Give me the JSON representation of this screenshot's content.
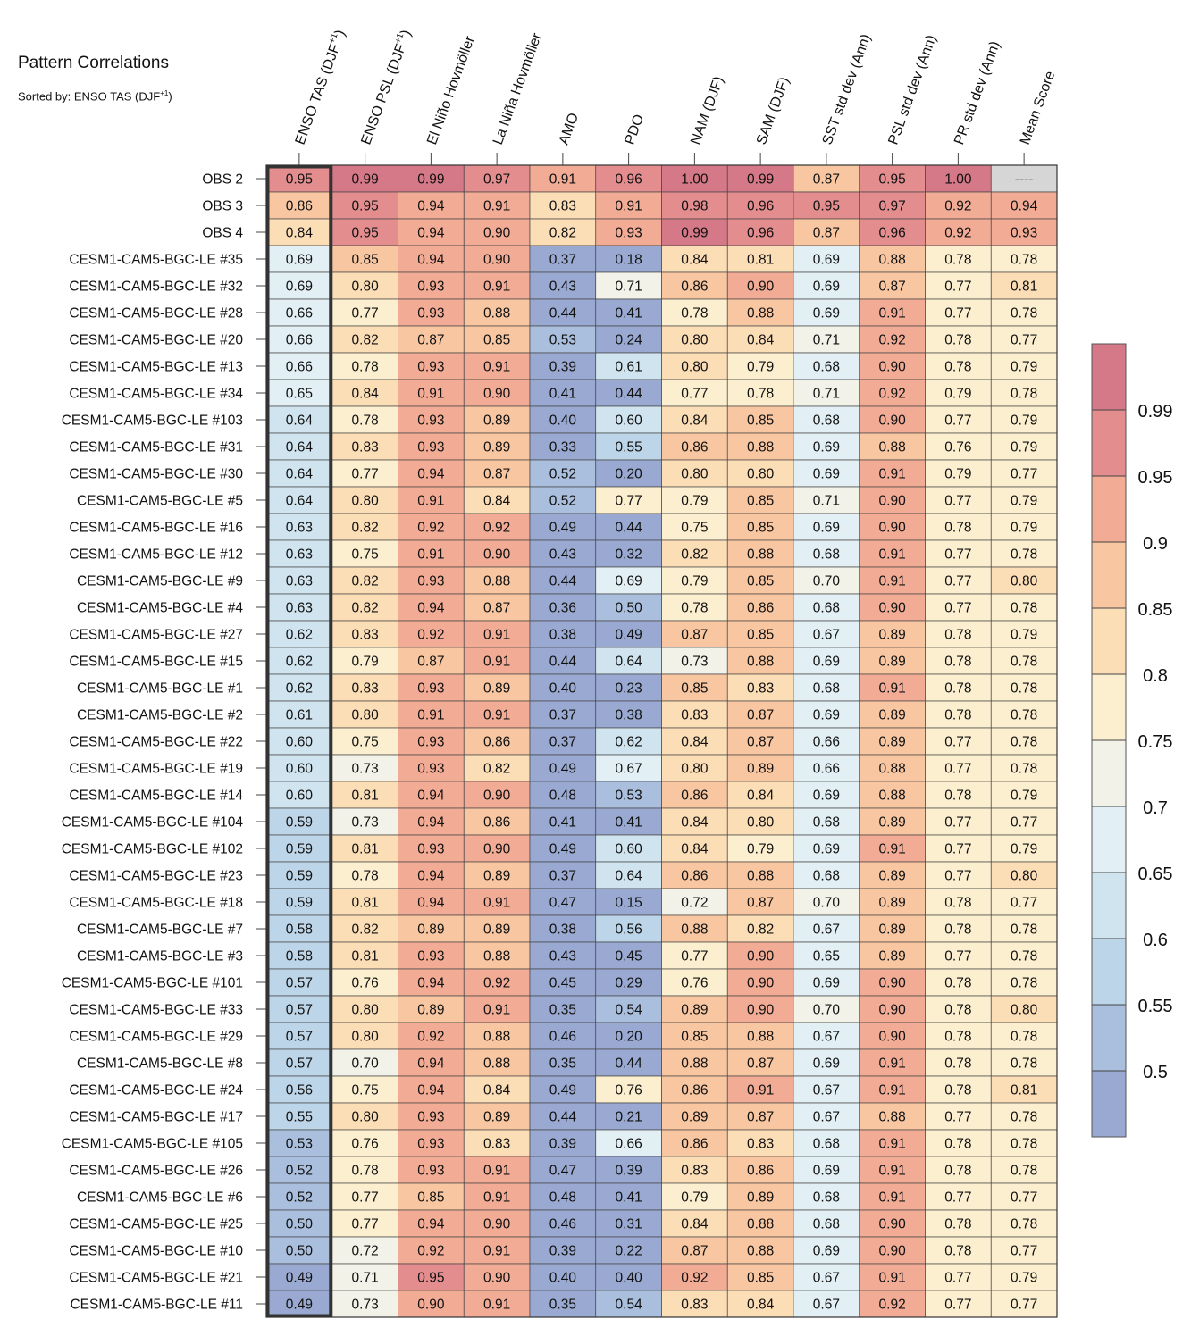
{
  "chart_data": {
    "type": "heatmap",
    "title": "Pattern Correlations",
    "subtitle": "Sorted by: ENSO TAS (DJF+1)",
    "subtitle_prefix": "Sorted by: ENSO TAS (DJF",
    "subtitle_sup": "+1",
    "subtitle_suffix": ")",
    "columns": [
      {
        "label": "ENSO TAS (DJF+1)",
        "main": "ENSO TAS (DJF",
        "sup": "+1",
        "tail": ")"
      },
      {
        "label": "ENSO PSL (DJF+1)",
        "main": "ENSO PSL (DJF",
        "sup": "+1",
        "tail": ")"
      },
      {
        "label": "El Niño Hovmöller",
        "main": "El Niño Hovmöller",
        "sup": "",
        "tail": ""
      },
      {
        "label": "La Niña Hovmöller",
        "main": "La Niña Hovmöller",
        "sup": "",
        "tail": ""
      },
      {
        "label": "AMO",
        "main": "AMO",
        "sup": "",
        "tail": ""
      },
      {
        "label": "PDO",
        "main": "PDO",
        "sup": "",
        "tail": ""
      },
      {
        "label": "NAM (DJF)",
        "main": "NAM (DJF)",
        "sup": "",
        "tail": ""
      },
      {
        "label": "SAM (DJF)",
        "main": "SAM (DJF)",
        "sup": "",
        "tail": ""
      },
      {
        "label": "SST std dev (Ann)",
        "main": "SST std dev (Ann)",
        "sup": "",
        "tail": ""
      },
      {
        "label": "PSL std dev (Ann)",
        "main": "PSL std dev (Ann)",
        "sup": "",
        "tail": ""
      },
      {
        "label": "PR std dev (Ann)",
        "main": "PR std dev (Ann)",
        "sup": "",
        "tail": ""
      },
      {
        "label": "Mean Score",
        "main": "Mean Score",
        "sup": "",
        "tail": ""
      }
    ],
    "missing_text": "----",
    "rows": [
      {
        "name": "OBS 2",
        "values": [
          "0.95",
          "0.99",
          "0.99",
          "0.97",
          "0.91",
          "0.96",
          "1.00",
          "0.99",
          "0.87",
          "0.95",
          "1.00",
          "----"
        ]
      },
      {
        "name": "OBS 3",
        "values": [
          "0.86",
          "0.95",
          "0.94",
          "0.91",
          "0.83",
          "0.91",
          "0.98",
          "0.96",
          "0.95",
          "0.97",
          "0.92",
          "0.94"
        ]
      },
      {
        "name": "OBS 4",
        "values": [
          "0.84",
          "0.95",
          "0.94",
          "0.90",
          "0.82",
          "0.93",
          "0.99",
          "0.96",
          "0.87",
          "0.96",
          "0.92",
          "0.93"
        ]
      },
      {
        "name": "CESM1-CAM5-BGC-LE #35",
        "values": [
          "0.69",
          "0.85",
          "0.94",
          "0.90",
          "0.37",
          "0.18",
          "0.84",
          "0.81",
          "0.69",
          "0.88",
          "0.78",
          "0.78"
        ]
      },
      {
        "name": "CESM1-CAM5-BGC-LE #32",
        "values": [
          "0.69",
          "0.80",
          "0.93",
          "0.91",
          "0.43",
          "0.71",
          "0.86",
          "0.90",
          "0.69",
          "0.87",
          "0.77",
          "0.81"
        ]
      },
      {
        "name": "CESM1-CAM5-BGC-LE #28",
        "values": [
          "0.66",
          "0.77",
          "0.93",
          "0.88",
          "0.44",
          "0.41",
          "0.78",
          "0.88",
          "0.69",
          "0.91",
          "0.77",
          "0.78"
        ]
      },
      {
        "name": "CESM1-CAM5-BGC-LE #20",
        "values": [
          "0.66",
          "0.82",
          "0.87",
          "0.85",
          "0.53",
          "0.24",
          "0.80",
          "0.84",
          "0.71",
          "0.92",
          "0.78",
          "0.77"
        ]
      },
      {
        "name": "CESM1-CAM5-BGC-LE #13",
        "values": [
          "0.66",
          "0.78",
          "0.93",
          "0.91",
          "0.39",
          "0.61",
          "0.80",
          "0.79",
          "0.68",
          "0.90",
          "0.78",
          "0.79"
        ]
      },
      {
        "name": "CESM1-CAM5-BGC-LE #34",
        "values": [
          "0.65",
          "0.84",
          "0.91",
          "0.90",
          "0.41",
          "0.44",
          "0.77",
          "0.78",
          "0.71",
          "0.92",
          "0.79",
          "0.78"
        ]
      },
      {
        "name": "CESM1-CAM5-BGC-LE #103",
        "values": [
          "0.64",
          "0.78",
          "0.93",
          "0.89",
          "0.40",
          "0.60",
          "0.84",
          "0.85",
          "0.68",
          "0.90",
          "0.77",
          "0.79"
        ]
      },
      {
        "name": "CESM1-CAM5-BGC-LE #31",
        "values": [
          "0.64",
          "0.83",
          "0.93",
          "0.89",
          "0.33",
          "0.55",
          "0.86",
          "0.88",
          "0.69",
          "0.88",
          "0.76",
          "0.79"
        ]
      },
      {
        "name": "CESM1-CAM5-BGC-LE #30",
        "values": [
          "0.64",
          "0.77",
          "0.94",
          "0.87",
          "0.52",
          "0.20",
          "0.80",
          "0.80",
          "0.69",
          "0.91",
          "0.79",
          "0.77"
        ]
      },
      {
        "name": "CESM1-CAM5-BGC-LE #5",
        "values": [
          "0.64",
          "0.80",
          "0.91",
          "0.84",
          "0.52",
          "0.77",
          "0.79",
          "0.85",
          "0.71",
          "0.90",
          "0.77",
          "0.79"
        ]
      },
      {
        "name": "CESM1-CAM5-BGC-LE #16",
        "values": [
          "0.63",
          "0.82",
          "0.92",
          "0.92",
          "0.49",
          "0.44",
          "0.75",
          "0.85",
          "0.69",
          "0.90",
          "0.78",
          "0.79"
        ]
      },
      {
        "name": "CESM1-CAM5-BGC-LE #12",
        "values": [
          "0.63",
          "0.75",
          "0.91",
          "0.90",
          "0.43",
          "0.32",
          "0.82",
          "0.88",
          "0.68",
          "0.91",
          "0.77",
          "0.78"
        ]
      },
      {
        "name": "CESM1-CAM5-BGC-LE #9",
        "values": [
          "0.63",
          "0.82",
          "0.93",
          "0.88",
          "0.44",
          "0.69",
          "0.79",
          "0.85",
          "0.70",
          "0.91",
          "0.77",
          "0.80"
        ]
      },
      {
        "name": "CESM1-CAM5-BGC-LE #4",
        "values": [
          "0.63",
          "0.82",
          "0.94",
          "0.87",
          "0.36",
          "0.50",
          "0.78",
          "0.86",
          "0.68",
          "0.90",
          "0.77",
          "0.78"
        ]
      },
      {
        "name": "CESM1-CAM5-BGC-LE #27",
        "values": [
          "0.62",
          "0.83",
          "0.92",
          "0.91",
          "0.38",
          "0.49",
          "0.87",
          "0.85",
          "0.67",
          "0.89",
          "0.78",
          "0.79"
        ]
      },
      {
        "name": "CESM1-CAM5-BGC-LE #15",
        "values": [
          "0.62",
          "0.79",
          "0.87",
          "0.91",
          "0.44",
          "0.64",
          "0.73",
          "0.88",
          "0.69",
          "0.89",
          "0.78",
          "0.78"
        ]
      },
      {
        "name": "CESM1-CAM5-BGC-LE #1",
        "values": [
          "0.62",
          "0.83",
          "0.93",
          "0.89",
          "0.40",
          "0.23",
          "0.85",
          "0.83",
          "0.68",
          "0.91",
          "0.78",
          "0.78"
        ]
      },
      {
        "name": "CESM1-CAM5-BGC-LE #2",
        "values": [
          "0.61",
          "0.80",
          "0.91",
          "0.91",
          "0.37",
          "0.38",
          "0.83",
          "0.87",
          "0.69",
          "0.89",
          "0.78",
          "0.78"
        ]
      },
      {
        "name": "CESM1-CAM5-BGC-LE #22",
        "values": [
          "0.60",
          "0.75",
          "0.93",
          "0.86",
          "0.37",
          "0.62",
          "0.84",
          "0.87",
          "0.66",
          "0.89",
          "0.77",
          "0.78"
        ]
      },
      {
        "name": "CESM1-CAM5-BGC-LE #19",
        "values": [
          "0.60",
          "0.73",
          "0.93",
          "0.82",
          "0.49",
          "0.67",
          "0.80",
          "0.89",
          "0.66",
          "0.88",
          "0.77",
          "0.78"
        ]
      },
      {
        "name": "CESM1-CAM5-BGC-LE #14",
        "values": [
          "0.60",
          "0.81",
          "0.94",
          "0.90",
          "0.48",
          "0.53",
          "0.86",
          "0.84",
          "0.69",
          "0.88",
          "0.78",
          "0.79"
        ]
      },
      {
        "name": "CESM1-CAM5-BGC-LE #104",
        "values": [
          "0.59",
          "0.73",
          "0.94",
          "0.86",
          "0.41",
          "0.41",
          "0.84",
          "0.80",
          "0.68",
          "0.89",
          "0.77",
          "0.77"
        ]
      },
      {
        "name": "CESM1-CAM5-BGC-LE #102",
        "values": [
          "0.59",
          "0.81",
          "0.93",
          "0.90",
          "0.49",
          "0.60",
          "0.84",
          "0.79",
          "0.69",
          "0.91",
          "0.77",
          "0.79"
        ]
      },
      {
        "name": "CESM1-CAM5-BGC-LE #23",
        "values": [
          "0.59",
          "0.78",
          "0.94",
          "0.89",
          "0.37",
          "0.64",
          "0.86",
          "0.88",
          "0.68",
          "0.89",
          "0.77",
          "0.80"
        ]
      },
      {
        "name": "CESM1-CAM5-BGC-LE #18",
        "values": [
          "0.59",
          "0.81",
          "0.94",
          "0.91",
          "0.47",
          "0.15",
          "0.72",
          "0.87",
          "0.70",
          "0.89",
          "0.78",
          "0.77"
        ]
      },
      {
        "name": "CESM1-CAM5-BGC-LE #7",
        "values": [
          "0.58",
          "0.82",
          "0.89",
          "0.89",
          "0.38",
          "0.56",
          "0.88",
          "0.82",
          "0.67",
          "0.89",
          "0.78",
          "0.78"
        ]
      },
      {
        "name": "CESM1-CAM5-BGC-LE #3",
        "values": [
          "0.58",
          "0.81",
          "0.93",
          "0.88",
          "0.43",
          "0.45",
          "0.77",
          "0.90",
          "0.65",
          "0.89",
          "0.77",
          "0.78"
        ]
      },
      {
        "name": "CESM1-CAM5-BGC-LE #101",
        "values": [
          "0.57",
          "0.76",
          "0.94",
          "0.92",
          "0.45",
          "0.29",
          "0.76",
          "0.90",
          "0.69",
          "0.90",
          "0.78",
          "0.78"
        ]
      },
      {
        "name": "CESM1-CAM5-BGC-LE #33",
        "values": [
          "0.57",
          "0.80",
          "0.89",
          "0.91",
          "0.35",
          "0.54",
          "0.89",
          "0.90",
          "0.70",
          "0.90",
          "0.78",
          "0.80"
        ]
      },
      {
        "name": "CESM1-CAM5-BGC-LE #29",
        "values": [
          "0.57",
          "0.80",
          "0.92",
          "0.88",
          "0.46",
          "0.20",
          "0.85",
          "0.88",
          "0.67",
          "0.90",
          "0.78",
          "0.78"
        ]
      },
      {
        "name": "CESM1-CAM5-BGC-LE #8",
        "values": [
          "0.57",
          "0.70",
          "0.94",
          "0.88",
          "0.35",
          "0.44",
          "0.88",
          "0.87",
          "0.69",
          "0.91",
          "0.78",
          "0.78"
        ]
      },
      {
        "name": "CESM1-CAM5-BGC-LE #24",
        "values": [
          "0.56",
          "0.75",
          "0.94",
          "0.84",
          "0.49",
          "0.76",
          "0.86",
          "0.91",
          "0.67",
          "0.91",
          "0.78",
          "0.81"
        ]
      },
      {
        "name": "CESM1-CAM5-BGC-LE #17",
        "values": [
          "0.55",
          "0.80",
          "0.93",
          "0.89",
          "0.44",
          "0.21",
          "0.89",
          "0.87",
          "0.67",
          "0.88",
          "0.77",
          "0.78"
        ]
      },
      {
        "name": "CESM1-CAM5-BGC-LE #105",
        "values": [
          "0.53",
          "0.76",
          "0.93",
          "0.83",
          "0.39",
          "0.66",
          "0.86",
          "0.83",
          "0.68",
          "0.91",
          "0.78",
          "0.78"
        ]
      },
      {
        "name": "CESM1-CAM5-BGC-LE #26",
        "values": [
          "0.52",
          "0.78",
          "0.93",
          "0.91",
          "0.47",
          "0.39",
          "0.83",
          "0.86",
          "0.69",
          "0.91",
          "0.78",
          "0.78"
        ]
      },
      {
        "name": "CESM1-CAM5-BGC-LE #6",
        "values": [
          "0.52",
          "0.77",
          "0.85",
          "0.91",
          "0.48",
          "0.41",
          "0.79",
          "0.89",
          "0.68",
          "0.91",
          "0.77",
          "0.77"
        ]
      },
      {
        "name": "CESM1-CAM5-BGC-LE #25",
        "values": [
          "0.50",
          "0.77",
          "0.94",
          "0.90",
          "0.46",
          "0.31",
          "0.84",
          "0.88",
          "0.68",
          "0.90",
          "0.78",
          "0.78"
        ]
      },
      {
        "name": "CESM1-CAM5-BGC-LE #10",
        "values": [
          "0.50",
          "0.72",
          "0.92",
          "0.91",
          "0.39",
          "0.22",
          "0.87",
          "0.88",
          "0.69",
          "0.90",
          "0.78",
          "0.77"
        ]
      },
      {
        "name": "CESM1-CAM5-BGC-LE #21",
        "values": [
          "0.49",
          "0.71",
          "0.95",
          "0.90",
          "0.40",
          "0.40",
          "0.92",
          "0.85",
          "0.67",
          "0.91",
          "0.77",
          "0.79"
        ]
      },
      {
        "name": "CESM1-CAM5-BGC-LE #11",
        "values": [
          "0.49",
          "0.73",
          "0.90",
          "0.91",
          "0.35",
          "0.54",
          "0.83",
          "0.84",
          "0.67",
          "0.92",
          "0.77",
          "0.77"
        ]
      }
    ],
    "colorbar": {
      "levels": [
        0.5,
        0.55,
        0.6,
        0.65,
        0.7,
        0.75,
        0.8,
        0.85,
        0.9,
        0.95,
        0.99
      ],
      "tick_labels": [
        "0.5",
        "0.55",
        "0.6",
        "0.65",
        "0.7",
        "0.75",
        "0.8",
        "0.85",
        "0.9",
        "0.95",
        "0.99"
      ],
      "colors": [
        "#99a9d1",
        "#aabfde",
        "#bdd5e8",
        "#d0e4ef",
        "#e2eff4",
        "#f3f2e8",
        "#fcefcf",
        "#fbddb6",
        "#f8c7a1",
        "#f2ab95",
        "#e48d8f",
        "#d57887"
      ],
      "missing_color": "#d6d6d6"
    },
    "highlight_column": "ENSO TAS (DJF+1)"
  }
}
